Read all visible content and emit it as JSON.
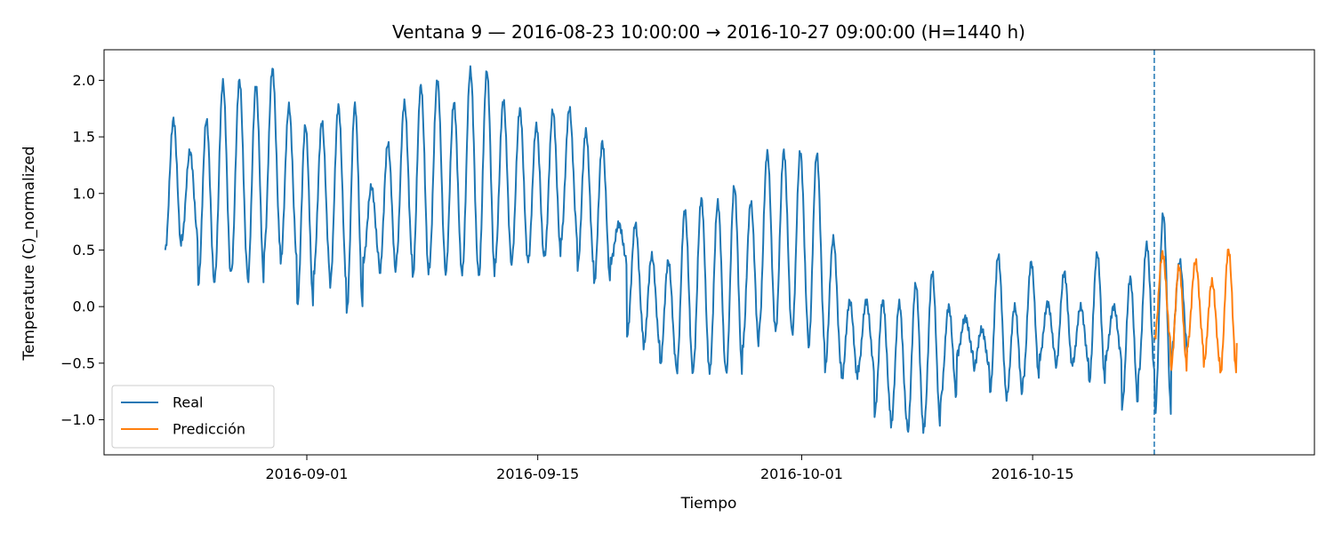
{
  "chart_data": {
    "type": "line",
    "title": "Ventana 9 — 2016-08-23 10:00:00 → 2016-10-27 09:00:00 (H=1440 h)",
    "xlabel": "Tiempo",
    "ylabel": "Temperature (C)_normalized",
    "x_ticks": [
      {
        "date": "2016-09-01",
        "label": "2016-09-01"
      },
      {
        "date": "2016-09-15",
        "label": "2016-09-15"
      },
      {
        "date": "2016-10-01",
        "label": "2016-10-01"
      },
      {
        "date": "2016-10-15",
        "label": "2016-10-15"
      }
    ],
    "y_ticks": [
      {
        "value": -1.0,
        "label": "−1.0"
      },
      {
        "value": -0.5,
        "label": "−0.5"
      },
      {
        "value": 0.0,
        "label": "0.0"
      },
      {
        "value": 0.5,
        "label": "0.5"
      },
      {
        "value": 1.0,
        "label": "1.0"
      },
      {
        "value": 1.5,
        "label": "1.5"
      },
      {
        "value": 2.0,
        "label": "2.0"
      }
    ],
    "xlim": [
      "2016-08-19 17:00",
      "2016-11-01 02:00"
    ],
    "ylim": [
      -1.31,
      2.27
    ],
    "grid": false,
    "legend": {
      "position": "lower-left",
      "entries": [
        "Real",
        "Predicción"
      ]
    },
    "forecast_start": "2016-10-22 09:00",
    "series": [
      {
        "name": "Real",
        "color": "#1f77b4",
        "daily_peak": [
          1.65,
          1.37,
          1.65,
          1.98,
          2.0,
          1.95,
          2.1,
          1.77,
          1.6,
          1.63,
          1.77,
          1.78,
          1.06,
          1.44,
          1.8,
          1.95,
          2.0,
          1.8,
          2.09,
          2.08,
          1.82,
          1.74,
          1.6,
          1.73,
          1.75,
          1.55,
          1.45,
          0.73,
          0.73,
          0.45,
          0.4,
          0.85,
          0.95,
          0.92,
          1.06,
          0.92,
          1.36,
          1.37,
          1.37,
          1.35,
          0.6,
          0.05,
          0.05,
          0.05,
          0.03,
          0.2,
          0.3,
          0.0,
          -0.1,
          -0.2,
          0.45,
          0.0,
          0.39,
          0.03,
          0.3,
          0.0,
          0.47,
          0.0,
          0.25,
          0.55,
          0.82,
          0.4
        ],
        "daily_trough": [
          0.5,
          0.6,
          0.2,
          0.25,
          0.3,
          0.22,
          0.5,
          0.4,
          0.0,
          0.3,
          0.2,
          -0.05,
          0.4,
          0.3,
          0.4,
          0.25,
          0.35,
          0.3,
          0.3,
          0.25,
          0.4,
          0.4,
          0.4,
          0.45,
          0.6,
          0.35,
          0.2,
          0.4,
          -0.25,
          -0.35,
          -0.52,
          -0.58,
          -0.55,
          -0.58,
          -0.6,
          -0.35,
          -0.2,
          -0.22,
          -0.25,
          -0.35,
          -0.55,
          -0.65,
          -0.55,
          -0.95,
          -1.05,
          -1.12,
          -1.05,
          -0.82,
          -0.42,
          -0.55,
          -0.75,
          -0.8,
          -0.65,
          -0.45,
          -0.52,
          -0.5,
          -0.68,
          -0.45,
          -0.88,
          -0.6,
          -0.95,
          -0.4
        ]
      },
      {
        "name": "Predicción",
        "color": "#ff7f0e",
        "daily_peak": [
          0.47,
          0.35,
          0.4,
          0.22,
          0.5,
          0.35,
          0.52,
          0.2,
          0.25
        ],
        "daily_trough": [
          -0.3,
          -0.55,
          -0.35,
          -0.5,
          -0.6,
          -0.35,
          -0.62,
          -0.5,
          0.0
        ]
      }
    ]
  }
}
